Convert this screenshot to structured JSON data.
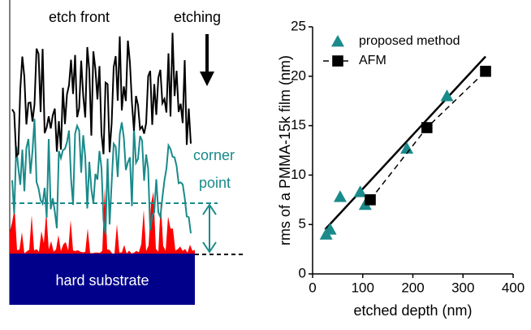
{
  "diagram": {
    "etch_front": "etch front",
    "etching": "etching",
    "corner": "corner",
    "point": "point",
    "substrate": "hard substrate"
  },
  "chart_data": {
    "type": "scatter",
    "xlabel": "etched depth (nm)",
    "ylabel": "rms of a PMMA-15k film (nm)",
    "xlim": [
      0,
      400
    ],
    "xticks": [
      0,
      100,
      200,
      300,
      400
    ],
    "ylim": [
      0,
      25
    ],
    "yticks": [
      0,
      5,
      10,
      15,
      20,
      25
    ],
    "series": [
      {
        "name": "proposed method",
        "color": "#1a8a8a",
        "marker": "triangle",
        "x": [
          27,
          35,
          55,
          95,
          105,
          188,
          268
        ],
        "values": [
          4,
          4.5,
          7.8,
          8.3,
          7,
          12.7,
          18
        ]
      },
      {
        "name": "AFM",
        "color": "#000000",
        "marker": "square",
        "dashed": true,
        "x": [
          115,
          228,
          345
        ],
        "values": [
          7.5,
          14.8,
          20.5
        ]
      }
    ],
    "fit": {
      "color": "#000000",
      "x": [
        25,
        345
      ],
      "values": [
        4.5,
        22
      ]
    }
  }
}
